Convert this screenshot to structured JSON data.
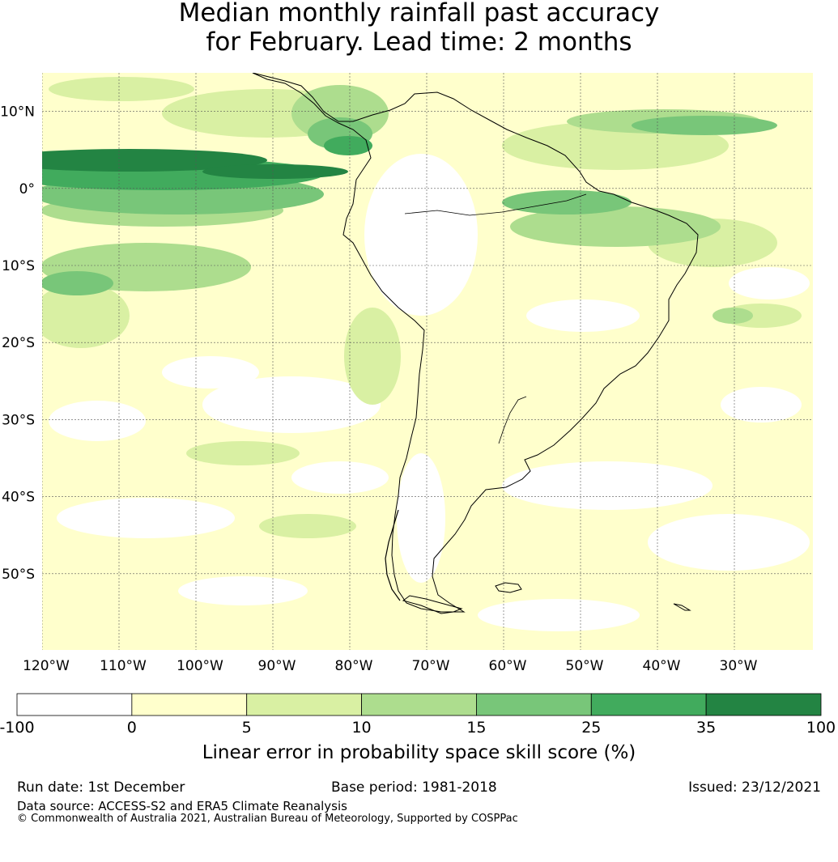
{
  "title": {
    "line1": "Median monthly rainfall past accuracy",
    "line2": "for February. Lead time: 2 months"
  },
  "map": {
    "lat_labels": [
      "10°N",
      "0°",
      "10°S",
      "20°S",
      "30°S",
      "40°S",
      "50°S"
    ],
    "lon_labels": [
      "120°W",
      "110°W",
      "100°W",
      "90°W",
      "80°W",
      "70°W",
      "60°W",
      "50°W",
      "40°W",
      "30°W"
    ],
    "lon_range": [
      -120,
      -20
    ],
    "lat_range": [
      -60,
      15
    ],
    "gridlines": true
  },
  "colorbar": {
    "ticks": [
      "-100",
      "0",
      "5",
      "10",
      "15",
      "25",
      "35",
      "100"
    ],
    "colors": [
      "#ffffff",
      "#ffffcc",
      "#d9f0a3",
      "#addd8e",
      "#78c679",
      "#41ab5d",
      "#238443"
    ],
    "title": "Linear error in probability space skill score (%)"
  },
  "footer": {
    "run_date": "Run date: 1st December",
    "base_period": "Base period: 1981-2018",
    "issued": "Issued: 23/12/2021",
    "data_source": "Data source: ACCESS-S2 and ERA5 Climate Reanalysis",
    "copyright": "© Commonwealth of Australia 2021, Australian Bureau of Meteorology, Supported by COSPPac"
  }
}
